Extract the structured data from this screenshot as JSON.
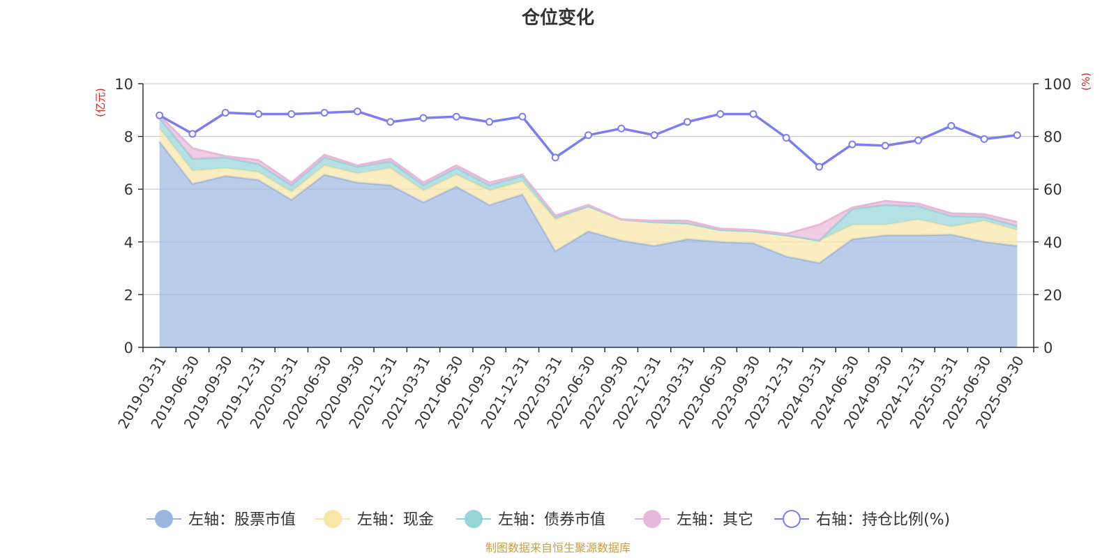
{
  "chart_data": {
    "type": "area",
    "title": "仓位变化",
    "source": "制图数据来自恒生聚源数据库",
    "left_axis": {
      "unit": "(亿元)",
      "min": 0,
      "max": 10,
      "ticks": [
        "0",
        "2",
        "4",
        "6",
        "8",
        "10"
      ]
    },
    "right_axis": {
      "unit": "(%)",
      "min": 0,
      "max": 100,
      "ticks": [
        "0",
        "20",
        "40",
        "60",
        "80",
        "100"
      ]
    },
    "categories": [
      "2019-03-31",
      "2019-06-30",
      "2019-09-30",
      "2019-12-31",
      "2020-03-31",
      "2020-06-30",
      "2020-09-30",
      "2020-12-31",
      "2021-03-31",
      "2021-06-30",
      "2021-09-30",
      "2021-12-31",
      "2022-03-31",
      "2022-06-30",
      "2022-09-30",
      "2022-12-31",
      "2023-03-31",
      "2023-06-30",
      "2023-09-30",
      "2023-12-31",
      "2024-03-31",
      "2024-06-30",
      "2024-09-30",
      "2024-12-31",
      "2025-03-31",
      "2025-06-30",
      "2025-09-30"
    ],
    "stacked_series": [
      {
        "name": "左轴：股票市值",
        "color": "#9bb6e0",
        "values": [
          7.8,
          6.2,
          6.5,
          6.35,
          5.6,
          6.55,
          6.25,
          6.15,
          5.5,
          6.1,
          5.4,
          5.8,
          3.65,
          4.4,
          4.05,
          3.85,
          4.1,
          4.0,
          3.95,
          3.45,
          3.2,
          4.1,
          4.25,
          4.25,
          4.28,
          4.0,
          3.85
        ]
      },
      {
        "name": "左轴：现金",
        "color": "#f8e6a8",
        "values": [
          0.5,
          0.5,
          0.3,
          0.3,
          0.3,
          0.35,
          0.35,
          0.65,
          0.45,
          0.45,
          0.55,
          0.5,
          1.2,
          0.95,
          0.8,
          0.9,
          0.6,
          0.45,
          0.45,
          0.8,
          0.85,
          0.55,
          0.4,
          0.6,
          0.3,
          0.8,
          0.6
        ]
      },
      {
        "name": "左轴：债券市值",
        "color": "#95d4d8",
        "values": [
          0.4,
          0.45,
          0.4,
          0.3,
          0.25,
          0.3,
          0.25,
          0.25,
          0.2,
          0.25,
          0.2,
          0.2,
          0.1,
          0.0,
          0.0,
          0.0,
          0.0,
          0.0,
          0.0,
          0.0,
          0.0,
          0.6,
          0.75,
          0.5,
          0.4,
          0.15,
          0.15
        ]
      },
      {
        "name": "左轴：其它",
        "color": "#e8b8d8",
        "values": [
          0.1,
          0.4,
          0.05,
          0.15,
          0.1,
          0.1,
          0.05,
          0.1,
          0.1,
          0.1,
          0.1,
          0.05,
          0.05,
          0.05,
          0.0,
          0.05,
          0.1,
          0.05,
          0.05,
          0.05,
          0.6,
          0.05,
          0.15,
          0.1,
          0.1,
          0.1,
          0.15
        ]
      }
    ],
    "line_series": {
      "name": "右轴：持仓比例(%)",
      "color": "#7a7ef0",
      "values": [
        88,
        81,
        89,
        88.5,
        88.5,
        89,
        89.5,
        85.5,
        87,
        87.5,
        85.5,
        87.5,
        72,
        80.5,
        83,
        80.5,
        85.5,
        88.5,
        88.5,
        79.5,
        68.5,
        77,
        76.5,
        78.5,
        84,
        79,
        80.5
      ]
    },
    "legend": [
      "左轴：股票市值",
      "左轴：现金",
      "左轴：债券市值",
      "左轴：其它",
      "右轴：持仓比例(%)"
    ]
  }
}
